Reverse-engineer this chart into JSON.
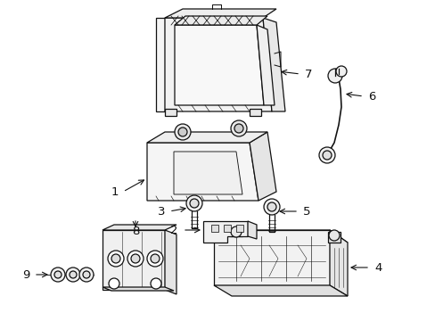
{
  "bg_color": "#ffffff",
  "line_color": "#111111",
  "lw": 0.9,
  "fig_width": 4.89,
  "fig_height": 3.6,
  "dpi": 100
}
